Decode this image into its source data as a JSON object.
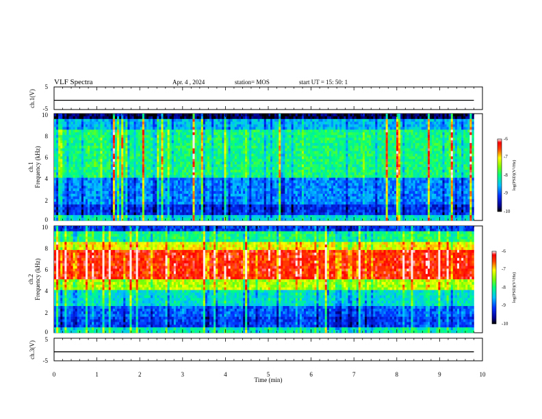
{
  "header": {
    "title": "VLF Spectra",
    "date": "Apr. 4 , 2024",
    "station": "station= MOS",
    "start": "start  UT =   15: 50: 1"
  },
  "chart_data": [
    {
      "type": "line",
      "panel": "ch1-voltage",
      "ylabel": "ch.1(V)",
      "ylim": [
        -5,
        5
      ],
      "yticks": [
        "5",
        "-5"
      ],
      "x": [
        0,
        9.8
      ],
      "values": [
        -0.9,
        -0.9
      ]
    },
    {
      "type": "heatmap",
      "panel": "ch1-spectrogram",
      "ylabel_1": "ch.1",
      "ylabel_2": "Frequency (kHz)",
      "ylim": [
        0,
        10
      ],
      "yticks": [
        "0",
        "2",
        "4",
        "6",
        "8",
        "10"
      ],
      "xlim": [
        0,
        9.8
      ],
      "colorbar": {
        "label": "log(PSD)(V²/Hz)",
        "range": [
          -10,
          -6
        ],
        "ticks": [
          "-6",
          "-7",
          "-8",
          "-9",
          "-10"
        ]
      }
    },
    {
      "type": "heatmap",
      "panel": "ch2-spectrogram",
      "ylabel_1": "ch.2",
      "ylabel_2": "Frequency (kHz)",
      "ylim": [
        0,
        10
      ],
      "yticks": [
        "0",
        "2",
        "4",
        "6",
        "8",
        "10"
      ],
      "xlim": [
        0,
        9.8
      ],
      "colorbar": {
        "label": "log(PSD)(V²/Hz)",
        "range": [
          -10,
          -6
        ],
        "ticks": [
          "-6",
          "-7",
          "-8",
          "-9",
          "-10"
        ]
      }
    },
    {
      "type": "line",
      "panel": "ch3-voltage",
      "ylabel": "ch.3(V)",
      "ylim": [
        -5,
        5
      ],
      "yticks": [
        "5",
        "-5"
      ],
      "x": [
        0,
        9.8
      ],
      "values": [
        -1.0,
        -1.0
      ]
    }
  ],
  "xaxis": {
    "label": "Time (min)",
    "range": [
      0,
      10
    ],
    "ticks": [
      "0",
      "1",
      "2",
      "3",
      "4",
      "5",
      "6",
      "7",
      "8",
      "9",
      "10"
    ]
  }
}
